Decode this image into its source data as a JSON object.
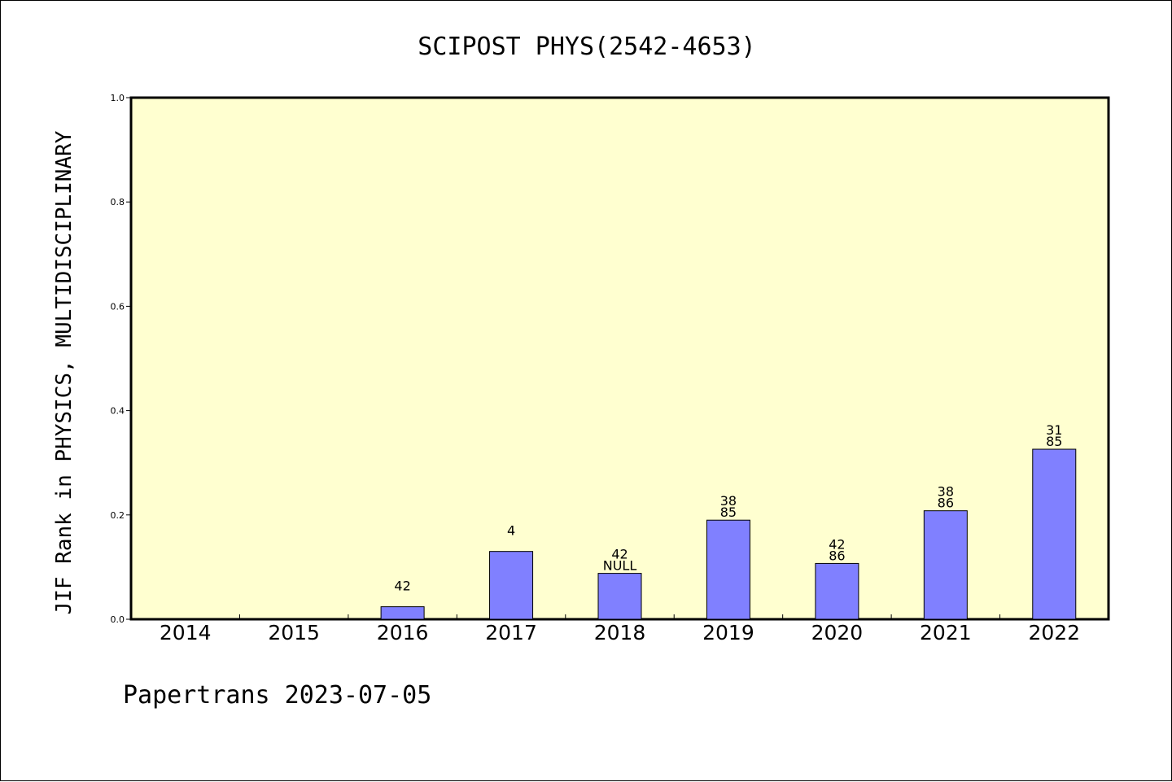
{
  "chart_data": {
    "type": "bar",
    "title": "SCIPOST PHYS(2542-4653)",
    "ylabel": "JIF Rank in PHYSICS, MULTIDISCIPLINARY",
    "xlabel": "",
    "ylim": [
      0,
      1.0
    ],
    "yticks": [
      "0.0",
      "0.2",
      "0.4",
      "0.6",
      "0.8",
      "1.0"
    ],
    "categories": [
      "2014",
      "2015",
      "2016",
      "2017",
      "2018",
      "2019",
      "2020",
      "2021",
      "2022"
    ],
    "values": [
      null,
      null,
      0.024,
      0.13,
      0.088,
      0.19,
      0.107,
      0.208,
      0.326
    ],
    "bar_labels": [
      [],
      [],
      [
        "42"
      ],
      [
        "4"
      ],
      [
        "42",
        "NULL"
      ],
      [
        "38",
        "85"
      ],
      [
        "42",
        "86"
      ],
      [
        "38",
        "86"
      ],
      [
        "31",
        "85"
      ]
    ],
    "grid": false,
    "bar_color": "#8080ff",
    "plot_background": "#ffffd0"
  },
  "footer": "Papertrans 2023-07-05"
}
